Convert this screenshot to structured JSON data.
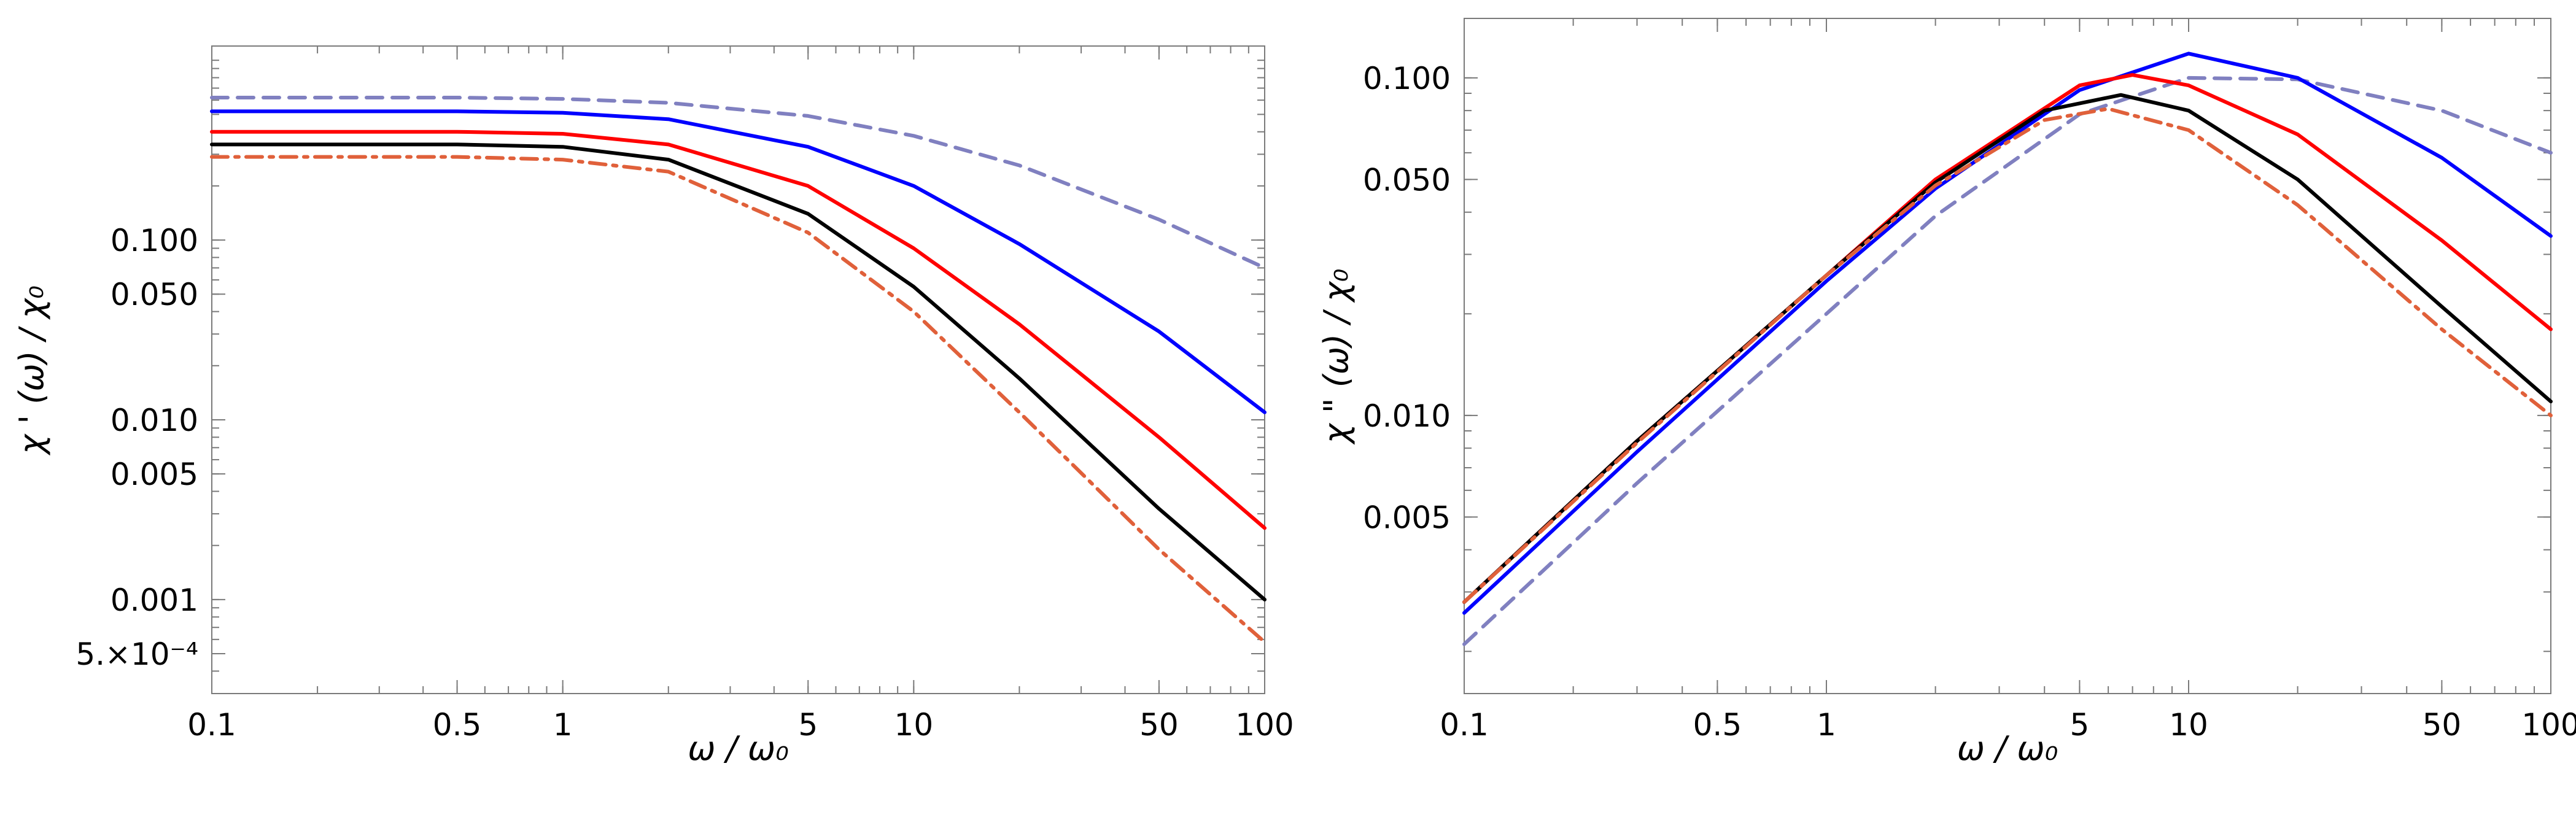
{
  "chart_data": [
    {
      "type": "line",
      "scale": {
        "x": "log",
        "y": "log"
      },
      "xlabel": "ω / ω₀",
      "ylabel": "χ ' (ω) / χ₀",
      "xlim": [
        0.1,
        100
      ],
      "ylim": [
        0.0003,
        1.2
      ],
      "xticks": [
        {
          "value": 0.1,
          "label": "0.1"
        },
        {
          "value": 0.5,
          "label": "0.5"
        },
        {
          "value": 1,
          "label": "1"
        },
        {
          "value": 5,
          "label": "5"
        },
        {
          "value": 10,
          "label": "10"
        },
        {
          "value": 50,
          "label": "50"
        },
        {
          "value": 100,
          "label": "100"
        }
      ],
      "yticks": [
        {
          "value": 0.1,
          "label": "0.100"
        },
        {
          "value": 0.05,
          "label": "0.050"
        },
        {
          "value": 0.01,
          "label": "0.010"
        },
        {
          "value": 0.005,
          "label": "0.005"
        },
        {
          "value": 0.001,
          "label": "0.001"
        },
        {
          "value": 0.0005,
          "label": "5.×10⁻⁴"
        }
      ],
      "series": [
        {
          "name": "dashed-purple",
          "color": "#8080c0",
          "dash": "dashed",
          "points": [
            [
              0.1,
              0.62
            ],
            [
              0.5,
              0.62
            ],
            [
              1,
              0.61
            ],
            [
              2,
              0.58
            ],
            [
              5,
              0.49
            ],
            [
              10,
              0.38
            ],
            [
              20,
              0.26
            ],
            [
              50,
              0.13
            ],
            [
              100,
              0.07
            ]
          ]
        },
        {
          "name": "blue",
          "color": "#0000ff",
          "dash": "solid",
          "points": [
            [
              0.1,
              0.52
            ],
            [
              0.5,
              0.52
            ],
            [
              1,
              0.51
            ],
            [
              2,
              0.47
            ],
            [
              5,
              0.33
            ],
            [
              10,
              0.2
            ],
            [
              20,
              0.095
            ],
            [
              50,
              0.031
            ],
            [
              100,
              0.011
            ]
          ]
        },
        {
          "name": "red",
          "color": "#ff0000",
          "dash": "solid",
          "points": [
            [
              0.1,
              0.4
            ],
            [
              0.5,
              0.4
            ],
            [
              1,
              0.39
            ],
            [
              2,
              0.34
            ],
            [
              5,
              0.2
            ],
            [
              10,
              0.09
            ],
            [
              20,
              0.034
            ],
            [
              50,
              0.008
            ],
            [
              100,
              0.0025
            ]
          ]
        },
        {
          "name": "black",
          "color": "#000000",
          "dash": "solid",
          "points": [
            [
              0.1,
              0.34
            ],
            [
              0.5,
              0.34
            ],
            [
              1,
              0.33
            ],
            [
              2,
              0.28
            ],
            [
              5,
              0.14
            ],
            [
              10,
              0.055
            ],
            [
              20,
              0.017
            ],
            [
              50,
              0.0032
            ],
            [
              100,
              0.001
            ]
          ]
        },
        {
          "name": "orange-dashdot",
          "color": "#e0603a",
          "dash": "dashdot",
          "points": [
            [
              0.1,
              0.29
            ],
            [
              0.5,
              0.29
            ],
            [
              1,
              0.28
            ],
            [
              2,
              0.24
            ],
            [
              5,
              0.11
            ],
            [
              10,
              0.04
            ],
            [
              20,
              0.011
            ],
            [
              50,
              0.0019
            ],
            [
              100,
              0.00058
            ]
          ]
        }
      ]
    },
    {
      "type": "line",
      "scale": {
        "x": "log",
        "y": "log"
      },
      "xlabel": "ω / ω₀",
      "ylabel": "χ \" (ω) / χ₀",
      "xlim": [
        0.1,
        100
      ],
      "ylim": [
        0.0015,
        0.15
      ],
      "xticks": [
        {
          "value": 0.1,
          "label": "0.1"
        },
        {
          "value": 0.5,
          "label": "0.5"
        },
        {
          "value": 1,
          "label": "1"
        },
        {
          "value": 5,
          "label": "5"
        },
        {
          "value": 10,
          "label": "10"
        },
        {
          "value": 50,
          "label": "50"
        },
        {
          "value": 100,
          "label": "100"
        }
      ],
      "yticks": [
        {
          "value": 0.1,
          "label": "0.100"
        },
        {
          "value": 0.05,
          "label": "0.050"
        },
        {
          "value": 0.01,
          "label": "0.010"
        },
        {
          "value": 0.005,
          "label": "0.005"
        }
      ],
      "series": [
        {
          "name": "dashed-purple",
          "color": "#8080c0",
          "dash": "dashed",
          "points": [
            [
              0.1,
              0.0021
            ],
            [
              0.3,
              0.0063
            ],
            [
              1,
              0.02
            ],
            [
              2,
              0.039
            ],
            [
              5,
              0.078
            ],
            [
              10,
              0.1
            ],
            [
              20,
              0.099
            ],
            [
              50,
              0.08
            ],
            [
              100,
              0.06
            ]
          ]
        },
        {
          "name": "blue",
          "color": "#0000ff",
          "dash": "solid",
          "points": [
            [
              0.1,
              0.0026
            ],
            [
              0.3,
              0.0078
            ],
            [
              1,
              0.025
            ],
            [
              2,
              0.047
            ],
            [
              5,
              0.092
            ],
            [
              10,
              0.118
            ],
            [
              20,
              0.1
            ],
            [
              50,
              0.058
            ],
            [
              100,
              0.034
            ]
          ]
        },
        {
          "name": "red",
          "color": "#ff0000",
          "dash": "solid",
          "points": [
            [
              0.1,
              0.0028
            ],
            [
              0.3,
              0.0084
            ],
            [
              1,
              0.026
            ],
            [
              2,
              0.05
            ],
            [
              5,
              0.095
            ],
            [
              7,
              0.102
            ],
            [
              10,
              0.095
            ],
            [
              20,
              0.068
            ],
            [
              50,
              0.033
            ],
            [
              100,
              0.018
            ]
          ]
        },
        {
          "name": "black",
          "color": "#000000",
          "dash": "solid",
          "points": [
            [
              0.1,
              0.0028
            ],
            [
              0.3,
              0.0084
            ],
            [
              1,
              0.026
            ],
            [
              2,
              0.049
            ],
            [
              4,
              0.08
            ],
            [
              6.5,
              0.089
            ],
            [
              10,
              0.08
            ],
            [
              20,
              0.05
            ],
            [
              50,
              0.021
            ],
            [
              100,
              0.011
            ]
          ]
        },
        {
          "name": "orange-dashdot",
          "color": "#e0603a",
          "dash": "dashdot",
          "points": [
            [
              0.1,
              0.0028
            ],
            [
              0.3,
              0.0083
            ],
            [
              1,
              0.026
            ],
            [
              2,
              0.048
            ],
            [
              4,
              0.075
            ],
            [
              6,
              0.081
            ],
            [
              10,
              0.07
            ],
            [
              20,
              0.042
            ],
            [
              50,
              0.018
            ],
            [
              100,
              0.01
            ]
          ]
        }
      ]
    }
  ]
}
